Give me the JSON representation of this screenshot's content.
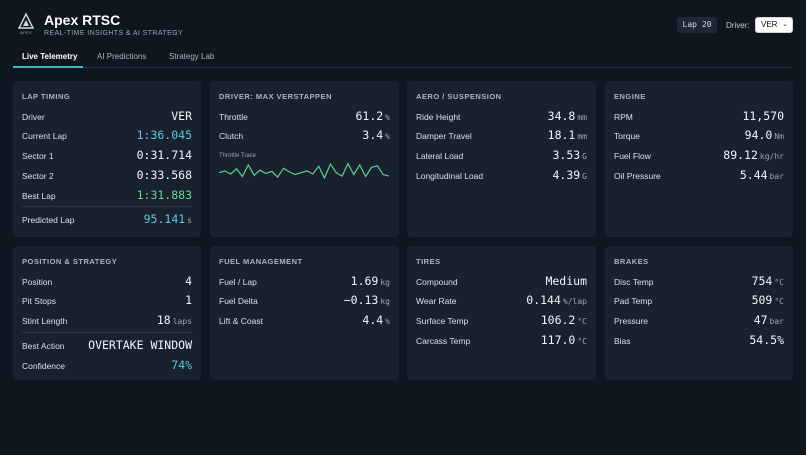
{
  "header": {
    "logo_text": "APEX",
    "title": "Apex RTSC",
    "subtitle": "REAL-TIME INSIGHTS & AI STRATEGY",
    "lap_chip": "Lap 20",
    "driver_label": "Driver:",
    "driver_value": "VER"
  },
  "tabs": [
    {
      "label": "Live Telemetry",
      "active": true
    },
    {
      "label": "AI Predictions",
      "active": false
    },
    {
      "label": "Strategy Lab",
      "active": false
    }
  ],
  "lap_timing": {
    "title": "LAP TIMING",
    "rows": [
      {
        "label": "Driver",
        "value": "VER"
      },
      {
        "label": "Current Lap",
        "value": "1:36.045"
      },
      {
        "label": "Sector 1",
        "value": "0:31.714"
      },
      {
        "label": "Sector 2",
        "value": "0:33.568"
      },
      {
        "label": "Best Lap",
        "value": "1:31.883"
      },
      {
        "label": "Predicted Lap",
        "value": "95.141",
        "unit": "s"
      }
    ]
  },
  "driver": {
    "title": "DRIVER: MAX VERSTAPPEN",
    "rows": [
      {
        "label": "Throttle",
        "value": "61.2",
        "unit": "%"
      },
      {
        "label": "Clutch",
        "value": "3.4",
        "unit": "%"
      }
    ],
    "trace_label": "Throttle Trace",
    "trace_color": "#5fd08c",
    "trace_values": [
      55,
      62,
      50,
      70,
      40,
      85,
      45,
      65,
      52,
      60,
      38,
      72,
      58,
      48,
      55,
      62,
      50,
      80,
      35,
      88,
      55,
      42,
      90,
      48,
      85,
      40,
      75,
      82,
      48,
      42
    ]
  },
  "aero": {
    "title": "AERO / SUSPENSION",
    "rows": [
      {
        "label": "Ride Height",
        "value": "34.8",
        "unit": "mm"
      },
      {
        "label": "Damper Travel",
        "value": "18.1",
        "unit": "mm"
      },
      {
        "label": "Lateral Load",
        "value": "3.53",
        "unit": "G"
      },
      {
        "label": "Longitudinal Load",
        "value": "4.39",
        "unit": "G"
      }
    ]
  },
  "engine": {
    "title": "ENGINE",
    "rows": [
      {
        "label": "RPM",
        "value": "11,570"
      },
      {
        "label": "Torque",
        "value": "94.0",
        "unit": "Nm"
      },
      {
        "label": "Fuel Flow",
        "value": "89.12",
        "unit": "kg/hr"
      },
      {
        "label": "Oil Pressure",
        "value": "5.44",
        "unit": "bar"
      }
    ]
  },
  "position": {
    "title": "POSITION & STRATEGY",
    "rows": [
      {
        "label": "Position",
        "value": "4"
      },
      {
        "label": "Pit Stops",
        "value": "1"
      },
      {
        "label": "Stint Length",
        "value": "18",
        "unit": "laps"
      },
      {
        "label": "Best Action",
        "value": "OVERTAKE WINDOW"
      },
      {
        "label": "Confidence",
        "value": "74%"
      }
    ]
  },
  "fuel": {
    "title": "FUEL MANAGEMENT",
    "rows": [
      {
        "label": "Fuel / Lap",
        "value": "1.69",
        "unit": "kg"
      },
      {
        "label": "Fuel Delta",
        "value": "−0.13",
        "unit": "kg"
      },
      {
        "label": "Lift & Coast",
        "value": "4.4",
        "unit": "%"
      }
    ]
  },
  "tires": {
    "title": "TIRES",
    "rows": [
      {
        "label": "Compound",
        "value": "Medium"
      },
      {
        "label": "Wear Rate",
        "value": "0.144",
        "unit": "%/lap"
      },
      {
        "label": "Surface Temp",
        "value": "106.2",
        "unit": "°C"
      },
      {
        "label": "Carcass Temp",
        "value": "117.0",
        "unit": "°C"
      }
    ]
  },
  "brakes": {
    "title": "BRAKES",
    "rows": [
      {
        "label": "Disc Temp",
        "value": "754",
        "unit": "°C"
      },
      {
        "label": "Pad Temp",
        "value": "509",
        "unit": "°C"
      },
      {
        "label": "Pressure",
        "value": "47",
        "unit": "bar"
      },
      {
        "label": "Bias",
        "value": "54.5%"
      }
    ]
  }
}
